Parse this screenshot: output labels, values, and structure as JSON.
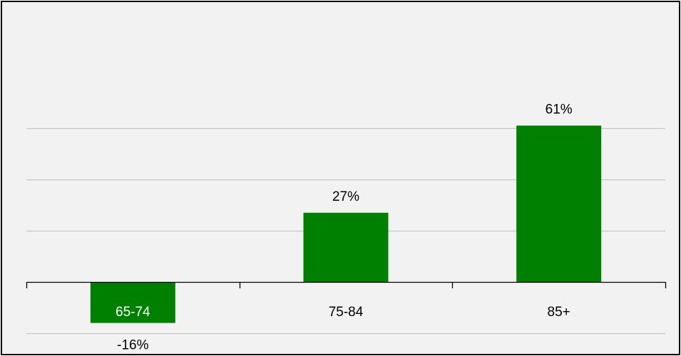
{
  "chart_data": {
    "type": "bar",
    "categories": [
      "65-74",
      "75-84",
      "85+"
    ],
    "values": [
      -16,
      27,
      61
    ],
    "value_labels": [
      "-16%",
      "27%",
      "61%"
    ],
    "ylim": [
      -20,
      80
    ],
    "grid": true,
    "legend": "none",
    "colors": {
      "bar": "#008000",
      "background": "#f2f2f2",
      "grid": "#c8c8c8",
      "axis": "#000000"
    }
  }
}
